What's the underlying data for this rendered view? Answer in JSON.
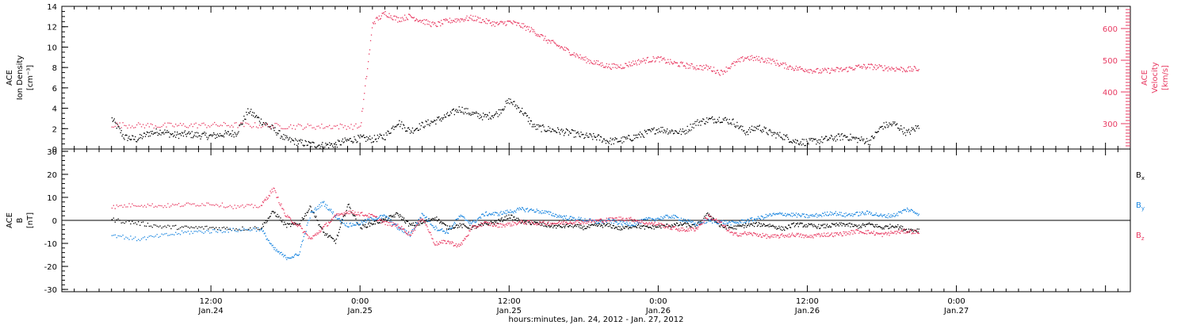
{
  "chart_data": [
    {
      "type": "scatter",
      "panel": "top",
      "ylabel_left": [
        "ACE",
        "Ion Density",
        "[cm⁻³]"
      ],
      "ylabel_right": [
        "ACE",
        "Velocity",
        "[km/s]"
      ],
      "ylim_left": [
        0,
        14
      ],
      "yticks_left": [
        0,
        2,
        4,
        6,
        8,
        10,
        12,
        14
      ],
      "ylim_right": [
        220,
        670
      ],
      "yticks_right": [
        300,
        400,
        500,
        600
      ],
      "series": [
        {
          "axis": "left",
          "color": "#000000",
          "x": [
            0,
            1,
            2,
            3,
            4,
            5,
            6,
            7,
            8,
            9,
            10,
            11,
            12,
            13,
            14,
            15,
            16,
            17,
            18,
            19,
            20,
            21,
            22,
            23,
            24,
            25,
            26,
            27,
            28,
            29,
            30,
            31,
            32,
            33,
            34,
            35,
            36,
            37,
            38,
            39,
            40,
            41,
            42,
            43,
            44,
            45,
            46,
            47,
            48,
            49,
            50,
            51,
            52,
            53,
            54,
            55,
            56,
            57,
            58,
            59,
            60,
            61,
            62,
            63,
            64,
            65
          ],
          "y": [
            3.0,
            1.2,
            1.0,
            1.6,
            1.8,
            1.4,
            1.5,
            1.4,
            1.3,
            1.5,
            1.6,
            3.8,
            2.8,
            2.0,
            1.0,
            0.7,
            0.5,
            0.4,
            0.5,
            0.9,
            1.1,
            1.0,
            1.3,
            2.7,
            1.8,
            2.4,
            2.8,
            3.3,
            4.0,
            3.5,
            3.2,
            3.5,
            4.8,
            3.8,
            2.2,
            2.0,
            1.8,
            1.6,
            1.3,
            1.2,
            0.8,
            0.9,
            1.2,
            1.6,
            2.0,
            1.8,
            1.7,
            2.6,
            2.9,
            3.0,
            2.7,
            1.7,
            2.2,
            1.6,
            1.3,
            0.8,
            0.7,
            0.9,
            1.1,
            1.3,
            1.0,
            0.8,
            2.3,
            2.5,
            1.6,
            2.3
          ]
        },
        {
          "axis": "right",
          "color": "#e83a62",
          "x": [
            0,
            2,
            4,
            6,
            8,
            10,
            12,
            14,
            16,
            18,
            20,
            21,
            22,
            23,
            24,
            25,
            26,
            27,
            28,
            29,
            30,
            31,
            32,
            33,
            34,
            35,
            36,
            37,
            38,
            39,
            40,
            41,
            42,
            43,
            44,
            45,
            46,
            47,
            48,
            49,
            50,
            51,
            52,
            53,
            54,
            55,
            56,
            57,
            58,
            59,
            60,
            61,
            62,
            63,
            64,
            65
          ],
          "y": [
            298,
            296,
            295,
            296,
            297,
            297,
            296,
            293,
            292,
            293,
            292,
            620,
            650,
            630,
            640,
            625,
            612,
            625,
            630,
            635,
            625,
            615,
            622,
            610,
            592,
            565,
            545,
            525,
            505,
            492,
            482,
            482,
            493,
            502,
            506,
            494,
            486,
            480,
            478,
            462,
            488,
            510,
            505,
            500,
            486,
            476,
            472,
            466,
            470,
            472,
            480,
            482,
            478,
            475,
            472,
            474
          ]
        }
      ]
    },
    {
      "type": "scatter",
      "panel": "bottom",
      "ylabel_left": [
        "ACE",
        "B",
        "[nT]"
      ],
      "ylim": [
        -31,
        31
      ],
      "yticks": [
        -30,
        -20,
        -10,
        0,
        10,
        20,
        30
      ],
      "zero_line": true,
      "legend_labels": [
        "B",
        "B",
        "B"
      ],
      "legend_subscripts": [
        "x",
        "y",
        "z"
      ],
      "series": [
        {
          "color": "#000000",
          "x": [
            0,
            2,
            4,
            6,
            8,
            10,
            12,
            13,
            14,
            15,
            16,
            17,
            18,
            19,
            20,
            21,
            22,
            23,
            24,
            25,
            26,
            27,
            28,
            29,
            30,
            31,
            32,
            33,
            34,
            35,
            36,
            37,
            38,
            39,
            40,
            41,
            42,
            43,
            44,
            45,
            46,
            47,
            48,
            49,
            50,
            51,
            52,
            53,
            54,
            55,
            56,
            57,
            58,
            59,
            60,
            61,
            62,
            63,
            64,
            65
          ],
          "y": [
            0.5,
            -1.0,
            -2.5,
            -3.0,
            -3.0,
            -3.5,
            -3.0,
            4.0,
            -2.0,
            -1.5,
            6.0,
            -5.0,
            -9.0,
            7.0,
            -3.0,
            -1.0,
            0.5,
            3.0,
            -2.0,
            -1.0,
            1.5,
            -3.0,
            -2.0,
            -3.0,
            -1.5,
            -0.5,
            2.0,
            -0.5,
            -1.0,
            -2.0,
            -2.5,
            -2.0,
            -3.0,
            -2.0,
            -2.0,
            -3.5,
            -2.0,
            -3.0,
            -2.5,
            -2.0,
            -1.5,
            -2.5,
            3.0,
            -2.5,
            -3.0,
            -2.0,
            -1.5,
            -2.0,
            -3.5,
            -1.5,
            -2.0,
            -2.5,
            -2.0,
            -1.5,
            -2.5,
            -1.5,
            -3.0,
            -2.0,
            -4.0,
            -4.0
          ]
        },
        {
          "color": "#1a86e0",
          "x": [
            0,
            2,
            4,
            6,
            8,
            10,
            12,
            13,
            14,
            15,
            16,
            17,
            18,
            19,
            20,
            21,
            22,
            23,
            24,
            25,
            26,
            27,
            28,
            29,
            30,
            31,
            32,
            33,
            34,
            35,
            36,
            37,
            38,
            39,
            40,
            41,
            42,
            43,
            44,
            45,
            46,
            47,
            48,
            49,
            50,
            51,
            52,
            53,
            54,
            55,
            56,
            57,
            58,
            59,
            60,
            61,
            62,
            63,
            64,
            65
          ],
          "y": [
            -6.0,
            -8.0,
            -6.5,
            -5.0,
            -4.5,
            -4.0,
            -3.5,
            -12.0,
            -16.0,
            -15.0,
            3.0,
            8.0,
            2.0,
            -2.0,
            -1.0,
            1.0,
            2.0,
            -3.0,
            -6.0,
            3.0,
            -3.0,
            -5.0,
            2.0,
            -1.0,
            3.0,
            3.0,
            4.0,
            5.0,
            4.5,
            3.5,
            2.0,
            1.0,
            0.5,
            -0.5,
            0.0,
            -1.0,
            -1.5,
            0.5,
            1.0,
            2.0,
            0.5,
            -1.5,
            0.0,
            -0.5,
            -1.0,
            0.0,
            1.0,
            2.5,
            3.0,
            2.5,
            2.0,
            2.5,
            3.5,
            2.5,
            3.0,
            3.5,
            2.0,
            2.5,
            5.0,
            3.0
          ]
        },
        {
          "color": "#e83a62",
          "x": [
            0,
            2,
            4,
            6,
            8,
            10,
            12,
            13,
            14,
            15,
            16,
            17,
            18,
            19,
            20,
            21,
            22,
            23,
            24,
            25,
            26,
            27,
            28,
            29,
            30,
            31,
            32,
            33,
            34,
            35,
            36,
            37,
            38,
            39,
            40,
            41,
            42,
            43,
            44,
            45,
            46,
            47,
            48,
            49,
            50,
            51,
            52,
            53,
            54,
            55,
            56,
            57,
            58,
            59,
            60,
            61,
            62,
            63,
            64,
            65
          ],
          "y": [
            6.0,
            7.0,
            6.5,
            7.0,
            7.5,
            6.0,
            6.5,
            14.0,
            2.0,
            -2.0,
            -8.0,
            -3.0,
            2.0,
            4.0,
            3.0,
            2.0,
            -1.0,
            -2.0,
            -6.0,
            1.5,
            -10.0,
            -9.0,
            -11.0,
            -3.0,
            -1.0,
            -2.0,
            -1.5,
            -0.5,
            -1.0,
            -1.0,
            -1.0,
            -0.5,
            -0.5,
            0.0,
            0.5,
            1.0,
            0.5,
            -1.0,
            -1.5,
            -3.0,
            -4.0,
            -3.5,
            2.0,
            -1.0,
            -6.0,
            -5.5,
            -6.0,
            -7.0,
            -6.5,
            -6.0,
            -7.0,
            -6.0,
            -6.0,
            -5.5,
            -4.5,
            -5.0,
            -6.0,
            -5.0,
            -4.5,
            -5.0
          ]
        }
      ]
    }
  ],
  "x_axis": {
    "range_hours": [
      0,
      86
    ],
    "data_offset_hours": 4,
    "major_ticks": [
      {
        "hour": 12,
        "time": "12:00",
        "date": "Jan.24"
      },
      {
        "hour": 24,
        "time": "0:00",
        "date": "Jan.25"
      },
      {
        "hour": 36,
        "time": "12:00",
        "date": "Jan.25"
      },
      {
        "hour": 48,
        "time": "0:00",
        "date": "Jan.26"
      },
      {
        "hour": 60,
        "time": "12:00",
        "date": "Jan.26"
      },
      {
        "hour": 72,
        "time": "0:00",
        "date": "Jan.27"
      }
    ],
    "label": "hours:minutes, Jan. 24, 2012 - Jan. 27, 2012"
  }
}
